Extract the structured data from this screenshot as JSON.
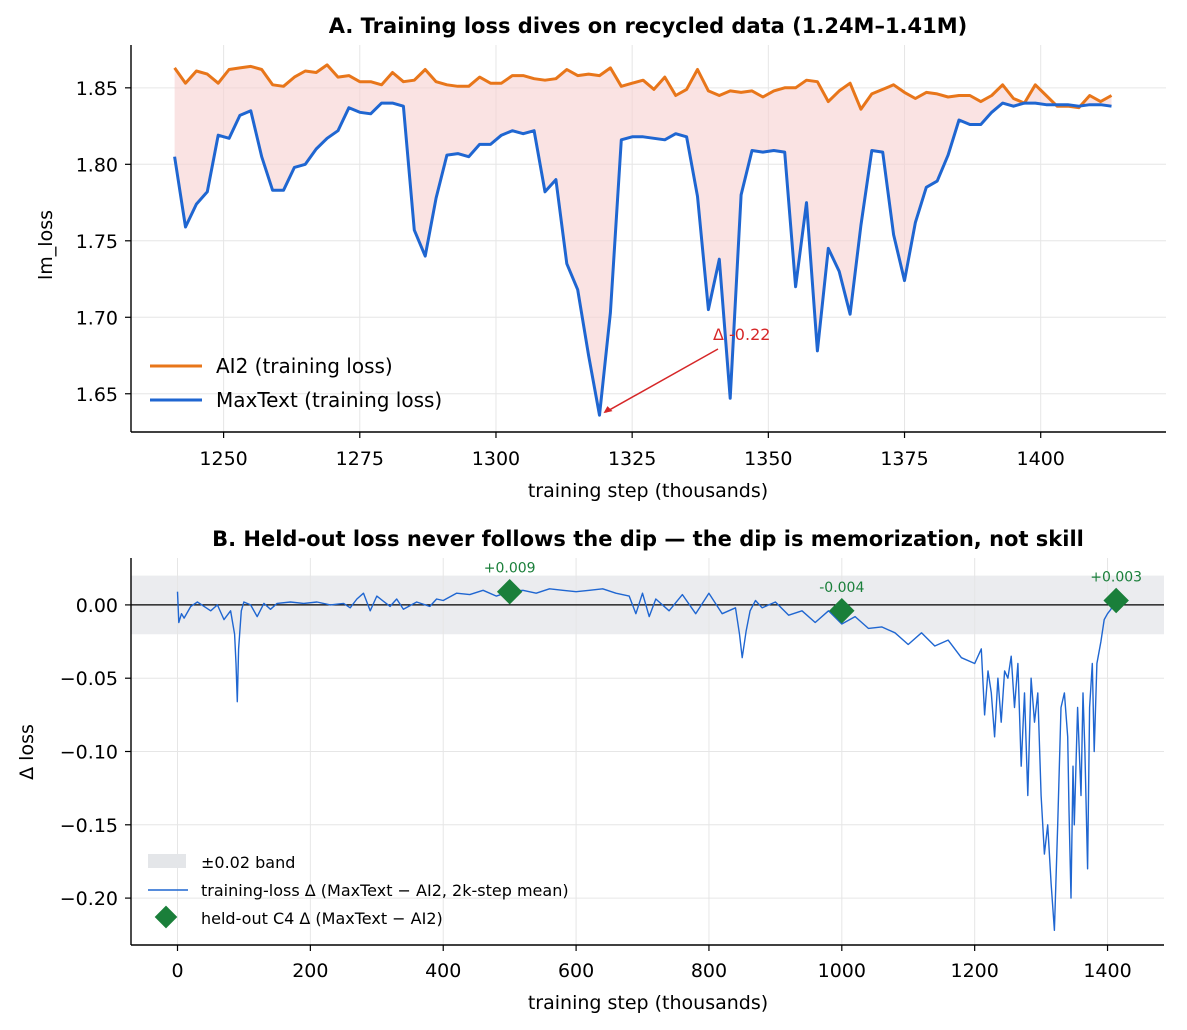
{
  "colors": {
    "ai2": "#e8761a",
    "maxtext": "#1f66d1",
    "fill": "#f6d0d0",
    "band": "#e4e6e9",
    "heldout": "#1a7f3a",
    "annotation": "#d62728",
    "grid": "#e6e6e6"
  },
  "chart_data": [
    {
      "type": "line",
      "title": "A.  Training loss dives on recycled data (1.24M–1.41M)",
      "xlabel": "training step (thousands)",
      "ylabel": "lm_loss",
      "xlim": [
        1233,
        1423
      ],
      "ylim": [
        1.625,
        1.878
      ],
      "xticks": [
        1250,
        1275,
        1300,
        1325,
        1350,
        1375,
        1400
      ],
      "yticks": [
        1.65,
        1.7,
        1.75,
        1.8,
        1.85
      ],
      "grid": true,
      "legend_position": "lower-left",
      "x": [
        1241,
        1243,
        1245,
        1247,
        1249,
        1251,
        1253,
        1255,
        1257,
        1259,
        1261,
        1263,
        1265,
        1267,
        1269,
        1271,
        1273,
        1275,
        1277,
        1279,
        1281,
        1283,
        1285,
        1287,
        1289,
        1291,
        1293,
        1295,
        1297,
        1299,
        1301,
        1303,
        1305,
        1307,
        1309,
        1311,
        1313,
        1315,
        1317,
        1319,
        1321,
        1323,
        1325,
        1327,
        1329,
        1331,
        1333,
        1335,
        1337,
        1339,
        1341,
        1343,
        1345,
        1347,
        1349,
        1351,
        1353,
        1355,
        1357,
        1359,
        1361,
        1363,
        1365,
        1367,
        1369,
        1371,
        1373,
        1375,
        1377,
        1379,
        1381,
        1383,
        1385,
        1387,
        1389,
        1391,
        1393,
        1395,
        1397,
        1399,
        1401,
        1403,
        1405,
        1407,
        1409,
        1411,
        1413
      ],
      "series": [
        {
          "name": "AI2 (training loss)",
          "values": [
            1.863,
            1.853,
            1.861,
            1.859,
            1.853,
            1.862,
            1.863,
            1.864,
            1.862,
            1.852,
            1.851,
            1.857,
            1.861,
            1.86,
            1.865,
            1.857,
            1.858,
            1.854,
            1.854,
            1.852,
            1.86,
            1.854,
            1.855,
            1.862,
            1.854,
            1.852,
            1.851,
            1.851,
            1.857,
            1.853,
            1.853,
            1.858,
            1.858,
            1.856,
            1.855,
            1.856,
            1.862,
            1.858,
            1.859,
            1.858,
            1.863,
            1.851,
            1.853,
            1.855,
            1.849,
            1.857,
            1.845,
            1.849,
            1.862,
            1.848,
            1.845,
            1.848,
            1.847,
            1.848,
            1.844,
            1.848,
            1.85,
            1.85,
            1.855,
            1.854,
            1.841,
            1.848,
            1.853,
            1.836,
            1.846,
            1.849,
            1.852,
            1.847,
            1.843,
            1.847,
            1.846,
            1.844,
            1.845,
            1.845,
            1.841,
            1.845,
            1.852,
            1.843,
            1.84,
            1.852,
            1.845,
            1.838,
            1.838,
            1.837,
            1.845,
            1.841,
            1.845
          ]
        },
        {
          "name": "MaxText (training loss)",
          "values": [
            1.805,
            1.759,
            1.774,
            1.782,
            1.819,
            1.817,
            1.832,
            1.835,
            1.805,
            1.783,
            1.783,
            1.798,
            1.8,
            1.81,
            1.817,
            1.822,
            1.837,
            1.834,
            1.833,
            1.84,
            1.84,
            1.838,
            1.757,
            1.74,
            1.778,
            1.806,
            1.807,
            1.805,
            1.813,
            1.813,
            1.819,
            1.822,
            1.82,
            1.822,
            1.782,
            1.79,
            1.735,
            1.718,
            1.675,
            1.636,
            1.703,
            1.816,
            1.818,
            1.818,
            1.817,
            1.816,
            1.82,
            1.818,
            1.779,
            1.705,
            1.738,
            1.647,
            1.78,
            1.809,
            1.808,
            1.809,
            1.808,
            1.72,
            1.775,
            1.678,
            1.745,
            1.73,
            1.702,
            1.76,
            1.809,
            1.808,
            1.754,
            1.724,
            1.762,
            1.785,
            1.789,
            1.806,
            1.829,
            1.826,
            1.826,
            1.834,
            1.84,
            1.838,
            1.84,
            1.84,
            1.839,
            1.839,
            1.839,
            1.838,
            1.839,
            1.839,
            1.838
          ]
        }
      ],
      "annotation": {
        "text": "Δ -0.22",
        "x": 1319,
        "y": 1.636
      }
    },
    {
      "type": "line",
      "title": "B.  Held-out loss never follows the dip — the dip is memorization, not skill",
      "xlabel": "training step (thousands)",
      "ylabel": "Δ loss",
      "xlim": [
        -70,
        1485
      ],
      "ylim": [
        -0.232,
        0.032
      ],
      "xticks": [
        0,
        200,
        400,
        600,
        800,
        1000,
        1200,
        1400
      ],
      "yticks": [
        0.0,
        -0.05,
        -0.1,
        -0.15,
        -0.2
      ],
      "ytick_labels": [
        "0.00",
        "−0.05",
        "−0.10",
        "−0.15",
        "−0.20"
      ],
      "grid": true,
      "legend_position": "lower-left",
      "band": {
        "label": "±0.02 band",
        "low": -0.02,
        "high": 0.02
      },
      "series": [
        {
          "name": "training-loss Δ (MaxText − AI2, 2k-step mean)",
          "points": [
            [
              0,
              0.009
            ],
            [
              2,
              -0.012
            ],
            [
              6,
              -0.006
            ],
            [
              10,
              -0.009
            ],
            [
              20,
              -0.001
            ],
            [
              30,
              0.002
            ],
            [
              40,
              -0.001
            ],
            [
              50,
              -0.004
            ],
            [
              60,
              0.0
            ],
            [
              70,
              -0.01
            ],
            [
              80,
              -0.004
            ],
            [
              86,
              -0.02
            ],
            [
              88,
              -0.04
            ],
            [
              90,
              -0.066
            ],
            [
              92,
              -0.03
            ],
            [
              96,
              -0.004
            ],
            [
              100,
              0.002
            ],
            [
              110,
              0.0
            ],
            [
              120,
              -0.008
            ],
            [
              130,
              0.001
            ],
            [
              140,
              -0.003
            ],
            [
              150,
              0.001
            ],
            [
              170,
              0.002
            ],
            [
              190,
              0.001
            ],
            [
              210,
              0.002
            ],
            [
              230,
              0.0
            ],
            [
              250,
              0.001
            ],
            [
              260,
              -0.002
            ],
            [
              270,
              0.004
            ],
            [
              280,
              0.008
            ],
            [
              290,
              -0.004
            ],
            [
              300,
              0.006
            ],
            [
              320,
              -0.001
            ],
            [
              330,
              0.004
            ],
            [
              340,
              -0.003
            ],
            [
              360,
              0.002
            ],
            [
              380,
              -0.001
            ],
            [
              390,
              0.004
            ],
            [
              400,
              0.003
            ],
            [
              420,
              0.008
            ],
            [
              440,
              0.007
            ],
            [
              460,
              0.01
            ],
            [
              480,
              0.006
            ],
            [
              500,
              0.009
            ],
            [
              520,
              0.01
            ],
            [
              540,
              0.008
            ],
            [
              560,
              0.011
            ],
            [
              580,
              0.01
            ],
            [
              600,
              0.009
            ],
            [
              620,
              0.01
            ],
            [
              640,
              0.011
            ],
            [
              660,
              0.008
            ],
            [
              680,
              0.006
            ],
            [
              690,
              -0.006
            ],
            [
              700,
              0.008
            ],
            [
              710,
              -0.008
            ],
            [
              720,
              0.004
            ],
            [
              740,
              -0.004
            ],
            [
              760,
              0.007
            ],
            [
              780,
              -0.006
            ],
            [
              800,
              0.008
            ],
            [
              820,
              -0.006
            ],
            [
              840,
              -0.002
            ],
            [
              846,
              -0.02
            ],
            [
              850,
              -0.036
            ],
            [
              856,
              -0.018
            ],
            [
              862,
              -0.004
            ],
            [
              870,
              0.003
            ],
            [
              880,
              -0.002
            ],
            [
              900,
              0.002
            ],
            [
              920,
              -0.007
            ],
            [
              940,
              -0.004
            ],
            [
              960,
              -0.012
            ],
            [
              980,
              -0.004
            ],
            [
              1000,
              -0.013
            ],
            [
              1020,
              -0.008
            ],
            [
              1040,
              -0.016
            ],
            [
              1060,
              -0.015
            ],
            [
              1080,
              -0.019
            ],
            [
              1100,
              -0.027
            ],
            [
              1120,
              -0.019
            ],
            [
              1140,
              -0.028
            ],
            [
              1160,
              -0.024
            ],
            [
              1180,
              -0.036
            ],
            [
              1200,
              -0.04
            ],
            [
              1210,
              -0.03
            ],
            [
              1215,
              -0.075
            ],
            [
              1220,
              -0.045
            ],
            [
              1225,
              -0.06
            ],
            [
              1230,
              -0.09
            ],
            [
              1235,
              -0.05
            ],
            [
              1240,
              -0.08
            ],
            [
              1245,
              -0.045
            ],
            [
              1250,
              -0.05
            ],
            [
              1255,
              -0.035
            ],
            [
              1260,
              -0.07
            ],
            [
              1265,
              -0.04
            ],
            [
              1270,
              -0.11
            ],
            [
              1275,
              -0.06
            ],
            [
              1280,
              -0.13
            ],
            [
              1285,
              -0.05
            ],
            [
              1290,
              -0.08
            ],
            [
              1295,
              -0.06
            ],
            [
              1300,
              -0.13
            ],
            [
              1305,
              -0.17
            ],
            [
              1310,
              -0.15
            ],
            [
              1315,
              -0.19
            ],
            [
              1320,
              -0.222
            ],
            [
              1325,
              -0.15
            ],
            [
              1330,
              -0.07
            ],
            [
              1335,
              -0.06
            ],
            [
              1340,
              -0.09
            ],
            [
              1342,
              -0.14
            ],
            [
              1345,
              -0.2
            ],
            [
              1348,
              -0.11
            ],
            [
              1350,
              -0.15
            ],
            [
              1355,
              -0.07
            ],
            [
              1360,
              -0.13
            ],
            [
              1363,
              -0.06
            ],
            [
              1366,
              -0.1
            ],
            [
              1370,
              -0.18
            ],
            [
              1373,
              -0.07
            ],
            [
              1377,
              -0.04
            ],
            [
              1380,
              -0.1
            ],
            [
              1384,
              -0.04
            ],
            [
              1390,
              -0.025
            ],
            [
              1395,
              -0.01
            ],
            [
              1400,
              -0.006
            ],
            [
              1405,
              -0.003
            ],
            [
              1410,
              0.002
            ],
            [
              1413,
              0.003
            ]
          ]
        },
        {
          "name": "held-out C4 Δ (MaxText − AI2)",
          "points": [
            [
              500,
              0.009
            ],
            [
              1000,
              -0.004
            ],
            [
              1413,
              0.003
            ]
          ],
          "labels": [
            "+0.009",
            "-0.004",
            "+0.003"
          ]
        }
      ]
    }
  ]
}
